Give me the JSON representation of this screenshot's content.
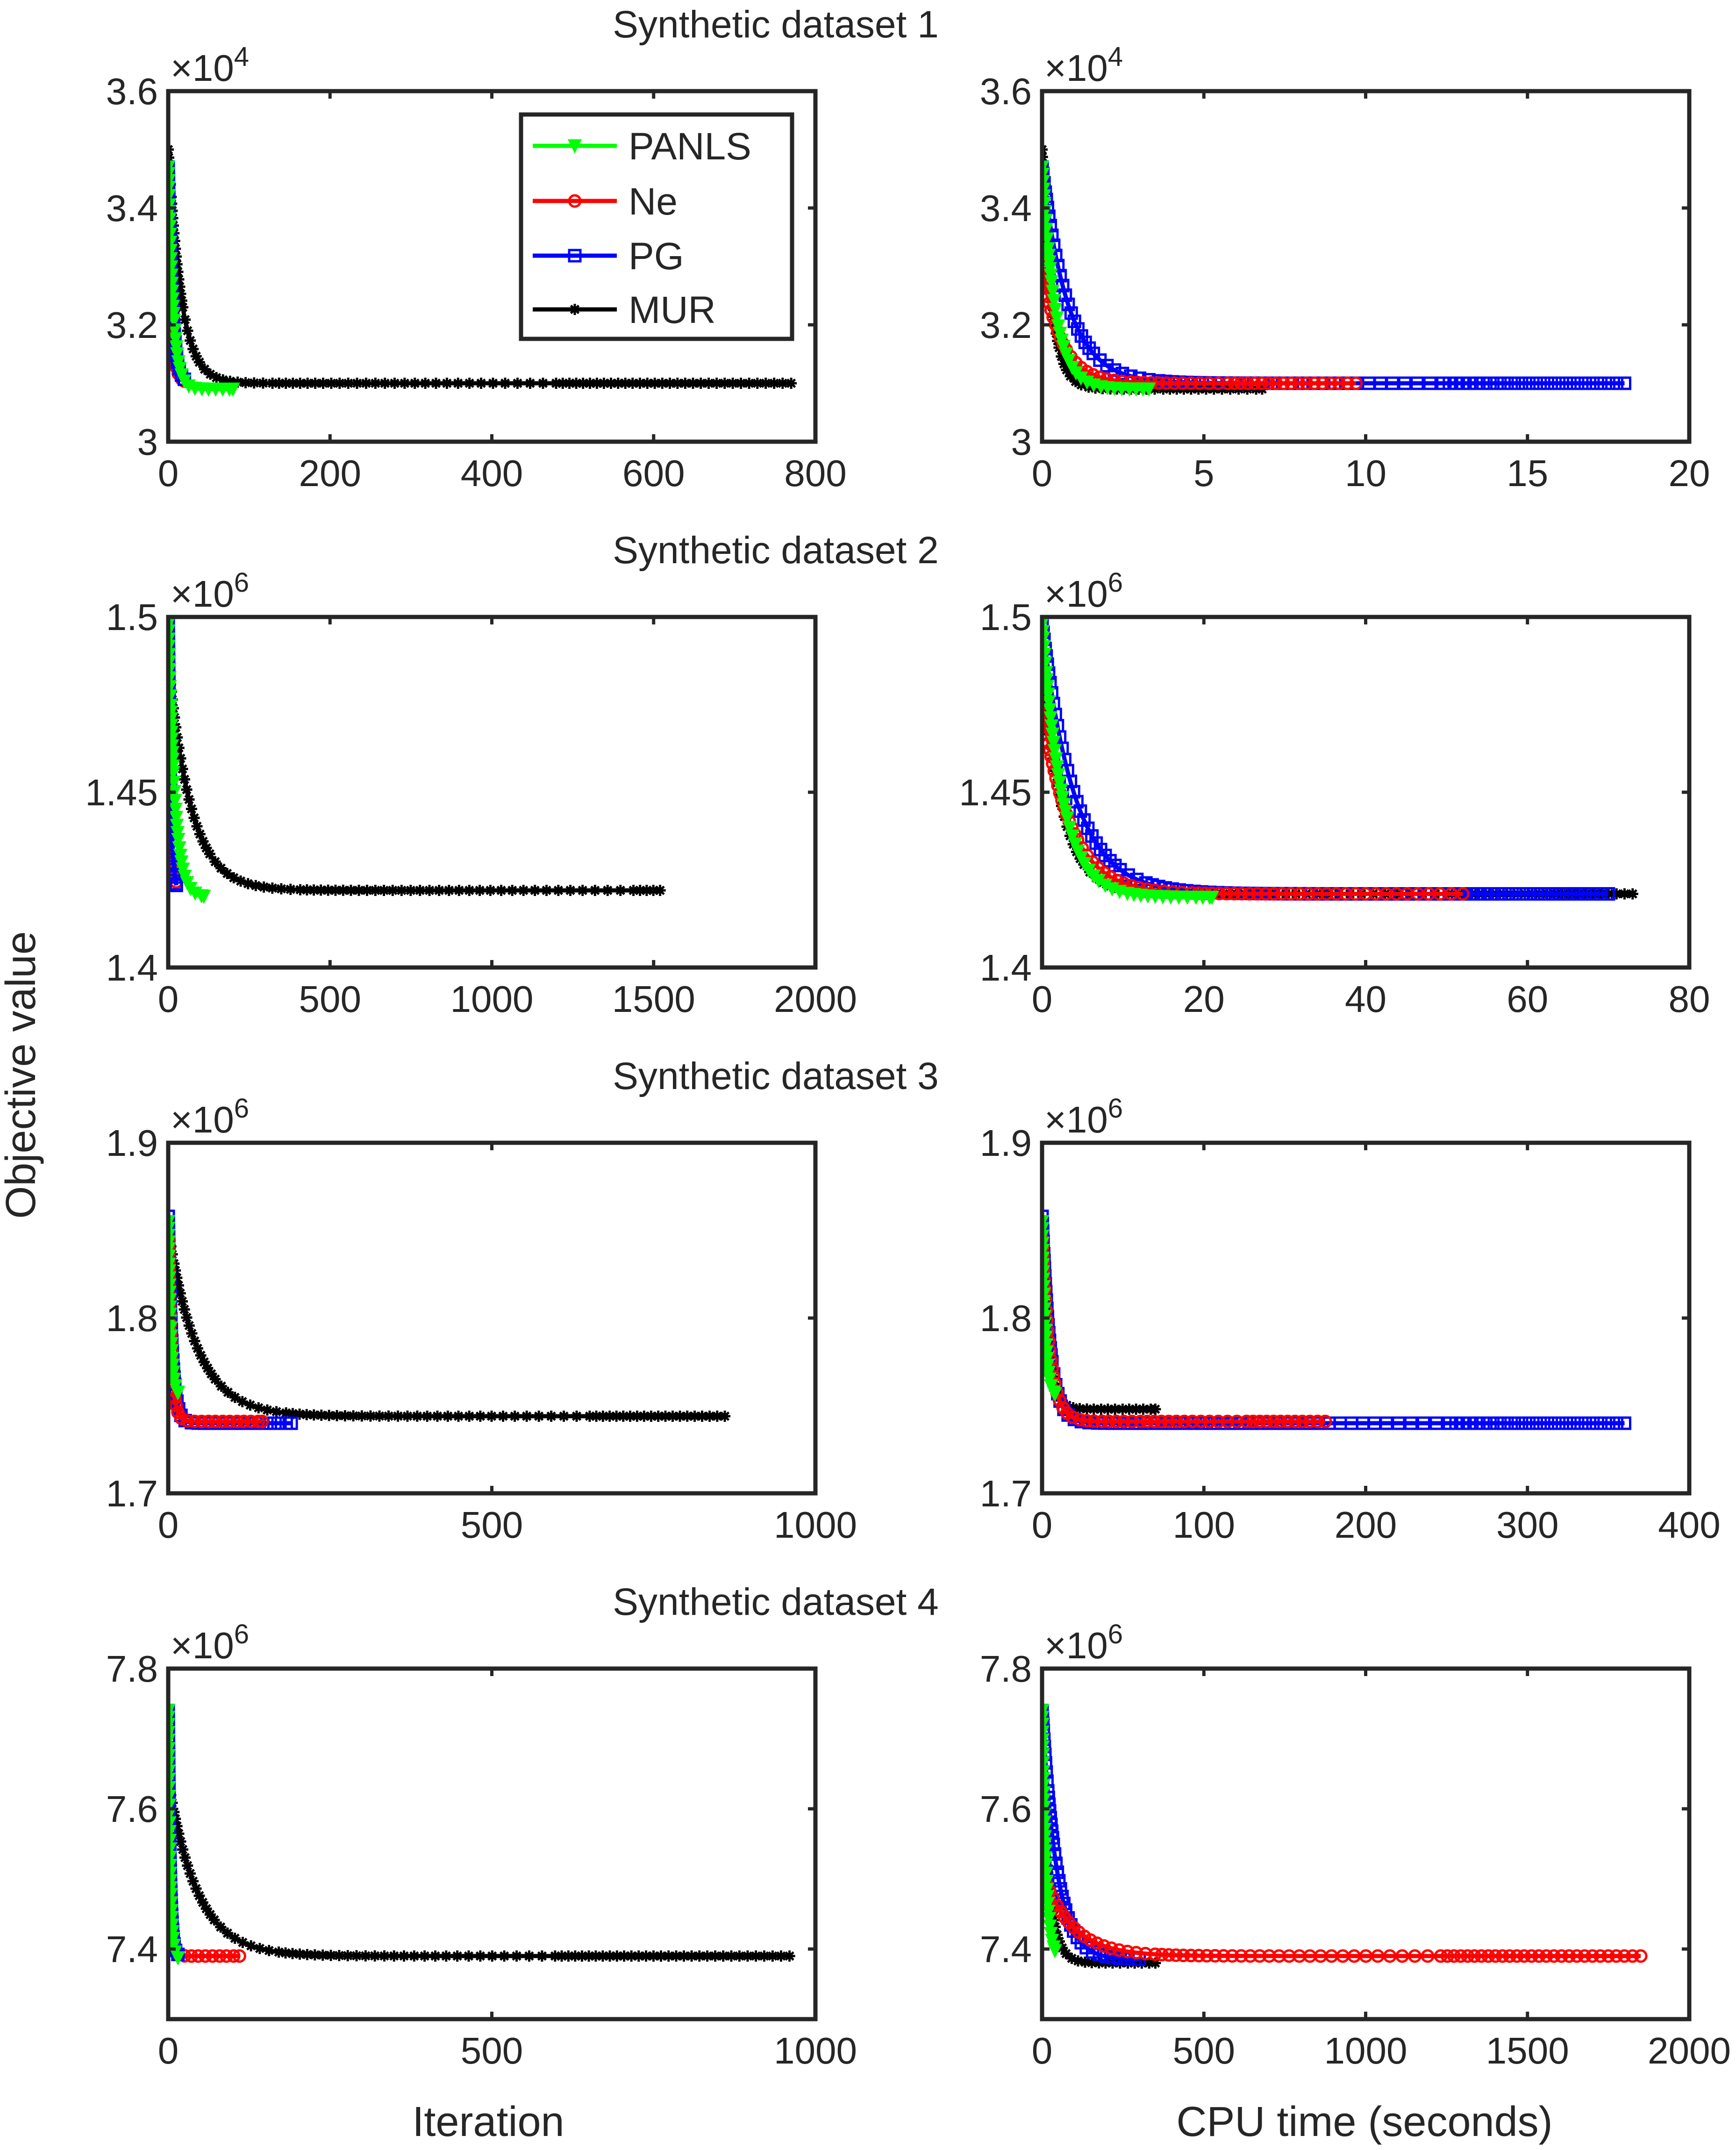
{
  "figure": {
    "ylabel": "Objective value",
    "left_xlabel": "Iteration",
    "right_xlabel": "CPU time (seconds)",
    "rows": [
      {
        "title": "Synthetic dataset 1",
        "exponent": "×10^4",
        "exp_base": "×10",
        "exp_power": "4"
      },
      {
        "title": "Synthetic dataset 2",
        "exponent": "×10^6",
        "exp_base": "×10",
        "exp_power": "6"
      },
      {
        "title": "Synthetic dataset 3",
        "exponent": "×10^6",
        "exp_base": "×10",
        "exp_power": "6"
      },
      {
        "title": "Synthetic dataset 4",
        "exponent": "×10^6",
        "exp_base": "×10",
        "exp_power": "6"
      }
    ]
  },
  "legend": [
    {
      "name": "PANLS",
      "color": "#00ff00",
      "marker": "triangle-down"
    },
    {
      "name": "Ne",
      "color": "#ff0000",
      "marker": "circle"
    },
    {
      "name": "PG",
      "color": "#0000ff",
      "marker": "square"
    },
    {
      "name": "MUR",
      "color": "#000000",
      "marker": "asterisk"
    }
  ],
  "chart_data": [
    {
      "type": "line",
      "panel": "dataset1-iteration",
      "title": "Synthetic dataset 1",
      "xlabel": "",
      "ylabel": "",
      "xlim": [
        0,
        800
      ],
      "ylim": [
        3.0,
        3.6
      ],
      "y_scale_factor": "1e4",
      "xticks": [
        "0",
        "200",
        "400",
        "600",
        "800"
      ],
      "yticks": [
        "3",
        "3.2",
        "3.4",
        "3.6"
      ],
      "series": [
        {
          "name": "MUR",
          "x_end": 770,
          "y0": 3.5,
          "yend": 3.1,
          "tau": 16
        },
        {
          "name": "Ne",
          "x_end": 20,
          "y0": 3.3,
          "yend": 3.1,
          "tau": 5
        },
        {
          "name": "PG",
          "x_end": 20,
          "y0": 3.47,
          "yend": 3.1,
          "tau": 5
        },
        {
          "name": "PANLS",
          "x_end": 80,
          "y0": 3.47,
          "yend": 3.09,
          "tau": 6
        }
      ]
    },
    {
      "type": "line",
      "panel": "dataset1-cputime",
      "title": "",
      "xlabel": "",
      "ylabel": "",
      "xlim": [
        0,
        20
      ],
      "ylim": [
        3.0,
        3.6
      ],
      "y_scale_factor": "1e4",
      "xticks": [
        "0",
        "5",
        "10",
        "15",
        "20"
      ],
      "yticks": [
        "3",
        "3.2",
        "3.4",
        "3.6"
      ],
      "series": [
        {
          "name": "MUR",
          "x_end": 6.8,
          "y0": 3.5,
          "yend": 3.09,
          "tau": 0.3
        },
        {
          "name": "PG",
          "x_end": 18.0,
          "y0": 3.47,
          "yend": 3.1,
          "tau": 0.8
        },
        {
          "name": "Ne",
          "x_end": 9.7,
          "y0": 3.3,
          "yend": 3.1,
          "tau": 0.6
        },
        {
          "name": "PANLS",
          "x_end": 3.3,
          "y0": 3.47,
          "yend": 3.09,
          "tau": 0.4
        }
      ]
    },
    {
      "type": "line",
      "panel": "dataset2-iteration",
      "title": "Synthetic dataset 2",
      "xlabel": "",
      "ylabel": "",
      "xlim": [
        0,
        2000
      ],
      "ylim": [
        1.4,
        1.5
      ],
      "y_scale_factor": "1e6",
      "xticks": [
        "0",
        "500",
        "1000",
        "1500",
        "2000"
      ],
      "yticks": [
        "1.4",
        "1.45",
        "1.5"
      ],
      "series": [
        {
          "name": "MUR",
          "x_end": 1520,
          "y0": 1.487,
          "yend": 1.422,
          "tau": 70
        },
        {
          "name": "Ne",
          "x_end": 25,
          "y0": 1.475,
          "yend": 1.422,
          "tau": 8
        },
        {
          "name": "PG",
          "x_end": 25,
          "y0": 1.498,
          "yend": 1.42,
          "tau": 8
        },
        {
          "name": "PANLS",
          "x_end": 110,
          "y0": 1.498,
          "yend": 1.42,
          "tau": 20
        }
      ]
    },
    {
      "type": "line",
      "panel": "dataset2-cputime",
      "title": "",
      "xlabel": "",
      "ylabel": "",
      "xlim": [
        0,
        80
      ],
      "ylim": [
        1.4,
        1.5
      ],
      "y_scale_factor": "1e6",
      "xticks": [
        "0",
        "20",
        "40",
        "60",
        "80"
      ],
      "yticks": [
        "1.4",
        "1.45",
        "1.5"
      ],
      "series": [
        {
          "name": "MUR",
          "x_end": 73,
          "y0": 1.487,
          "yend": 1.421,
          "tau": 2.5
        },
        {
          "name": "PG",
          "x_end": 70,
          "y0": 1.498,
          "yend": 1.421,
          "tau": 4
        },
        {
          "name": "Ne",
          "x_end": 52,
          "y0": 1.475,
          "yend": 1.421,
          "tau": 3.5
        },
        {
          "name": "PANLS",
          "x_end": 21,
          "y0": 1.498,
          "yend": 1.42,
          "tau": 2.5
        }
      ]
    },
    {
      "type": "line",
      "panel": "dataset3-iteration",
      "title": "Synthetic dataset 3",
      "xlabel": "",
      "ylabel": "",
      "xlim": [
        0,
        1000
      ],
      "ylim": [
        1.7,
        1.9
      ],
      "y_scale_factor": "1e6",
      "xticks": [
        "0",
        "500",
        "1000"
      ],
      "yticks": [
        "1.7",
        "1.8",
        "1.9"
      ],
      "series": [
        {
          "name": "MUR",
          "x_end": 860,
          "y0": 1.85,
          "yend": 1.744,
          "tau": 45
        },
        {
          "name": "PG",
          "x_end": 190,
          "y0": 1.858,
          "yend": 1.74,
          "tau": 6
        },
        {
          "name": "Ne",
          "x_end": 145,
          "y0": 1.845,
          "yend": 1.741,
          "tau": 5
        },
        {
          "name": "PANLS",
          "x_end": 15,
          "y0": 1.855,
          "yend": 1.755,
          "tau": 4
        }
      ]
    },
    {
      "type": "line",
      "panel": "dataset3-cputime",
      "title": "",
      "xlabel": "",
      "ylabel": "",
      "xlim": [
        0,
        400
      ],
      "ylim": [
        1.7,
        1.9
      ],
      "y_scale_factor": "1e6",
      "xticks": [
        "0",
        "100",
        "200",
        "300",
        "400"
      ],
      "yticks": [
        "1.7",
        "1.8",
        "1.9"
      ],
      "series": [
        {
          "name": "MUR",
          "x_end": 70,
          "y0": 1.85,
          "yend": 1.748,
          "tau": 4
        },
        {
          "name": "PG",
          "x_end": 360,
          "y0": 1.858,
          "yend": 1.74,
          "tau": 5
        },
        {
          "name": "Ne",
          "x_end": 175,
          "y0": 1.845,
          "yend": 1.741,
          "tau": 5
        },
        {
          "name": "PANLS",
          "x_end": 8,
          "y0": 1.855,
          "yend": 1.755,
          "tau": 2
        }
      ]
    },
    {
      "type": "line",
      "panel": "dataset4-iteration",
      "title": "Synthetic dataset 4",
      "xlabel": "Iteration",
      "ylabel": "",
      "xlim": [
        0,
        1000
      ],
      "ylim": [
        7.3,
        7.8
      ],
      "y_scale_factor": "1e6",
      "xticks": [
        "0",
        "500",
        "1000"
      ],
      "yticks": [
        "7.4",
        "7.6",
        "7.8"
      ],
      "series": [
        {
          "name": "MUR",
          "x_end": 960,
          "y0": 7.64,
          "yend": 7.39,
          "tau": 45
        },
        {
          "name": "Ne",
          "x_end": 110,
          "y0": 7.51,
          "yend": 7.39,
          "tau": 4
        },
        {
          "name": "PG",
          "x_end": 15,
          "y0": 7.74,
          "yend": 7.39,
          "tau": 3
        },
        {
          "name": "PANLS",
          "x_end": 15,
          "y0": 7.74,
          "yend": 7.385,
          "tau": 3
        }
      ]
    },
    {
      "type": "line",
      "panel": "dataset4-cputime",
      "title": "",
      "xlabel": "CPU time (seconds)",
      "ylabel": "",
      "xlim": [
        0,
        2000
      ],
      "ylim": [
        7.3,
        7.8
      ],
      "y_scale_factor": "1e6",
      "xticks": [
        "0",
        "500",
        "1000",
        "1500",
        "2000"
      ],
      "yticks": [
        "7.4",
        "7.6",
        "7.8"
      ],
      "series": [
        {
          "name": "MUR",
          "x_end": 350,
          "y0": 7.64,
          "yend": 7.38,
          "tau": 25
        },
        {
          "name": "PG",
          "x_end": 300,
          "y0": 7.74,
          "yend": 7.385,
          "tau": 45
        },
        {
          "name": "Ne",
          "x_end": 1850,
          "y0": 7.51,
          "yend": 7.39,
          "tau": 90
        },
        {
          "name": "PANLS",
          "x_end": 40,
          "y0": 7.74,
          "yend": 7.385,
          "tau": 12
        }
      ]
    }
  ]
}
